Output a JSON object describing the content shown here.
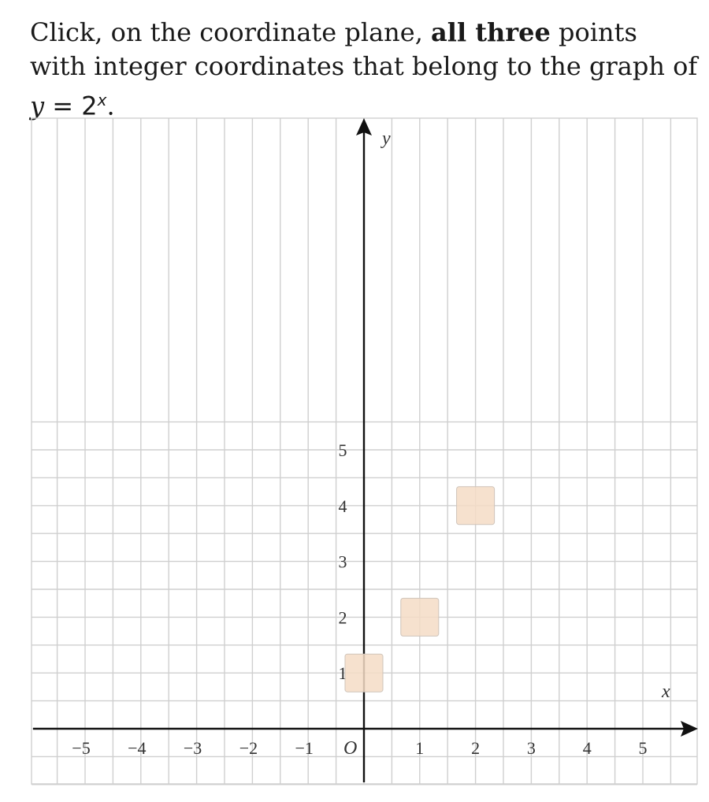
{
  "question": {
    "text_before": "Click, on the coordinate plane, ",
    "emphasis": "all three",
    "text_after": " points with integer coordinates that belong to the graph of ",
    "function_var": "y",
    "function_eq": " = 2",
    "function_exp": "x",
    "function_end": "."
  },
  "plane": {
    "x_axis_label": "x",
    "y_axis_label": "y",
    "origin_label": "O",
    "x_tick_labels": [
      {
        "value": -5,
        "label": "−5"
      },
      {
        "value": -4,
        "label": "−4"
      },
      {
        "value": -3,
        "label": "−3"
      },
      {
        "value": -2,
        "label": "−2"
      },
      {
        "value": -1,
        "label": "−1"
      },
      {
        "value": 1,
        "label": "1"
      },
      {
        "value": 2,
        "label": "2"
      },
      {
        "value": 3,
        "label": "3"
      },
      {
        "value": 4,
        "label": "4"
      },
      {
        "value": 5,
        "label": "5"
      }
    ],
    "y_tick_labels": [
      {
        "value": 1,
        "label": "1"
      },
      {
        "value": 2,
        "label": "2"
      },
      {
        "value": 3,
        "label": "3"
      },
      {
        "value": 4,
        "label": "4"
      },
      {
        "value": 5,
        "label": "5"
      }
    ],
    "x_range": [
      -6,
      6
    ],
    "y_range": [
      -1,
      5.5
    ],
    "grid_step": 0.5,
    "highlighted_points": [
      {
        "x": 0,
        "y": 1
      },
      {
        "x": 1,
        "y": 2
      },
      {
        "x": 2,
        "y": 4
      }
    ],
    "colors": {
      "grid": "#cfcfcf",
      "axis": "#111111",
      "highlight": "#f5dcc6"
    }
  }
}
